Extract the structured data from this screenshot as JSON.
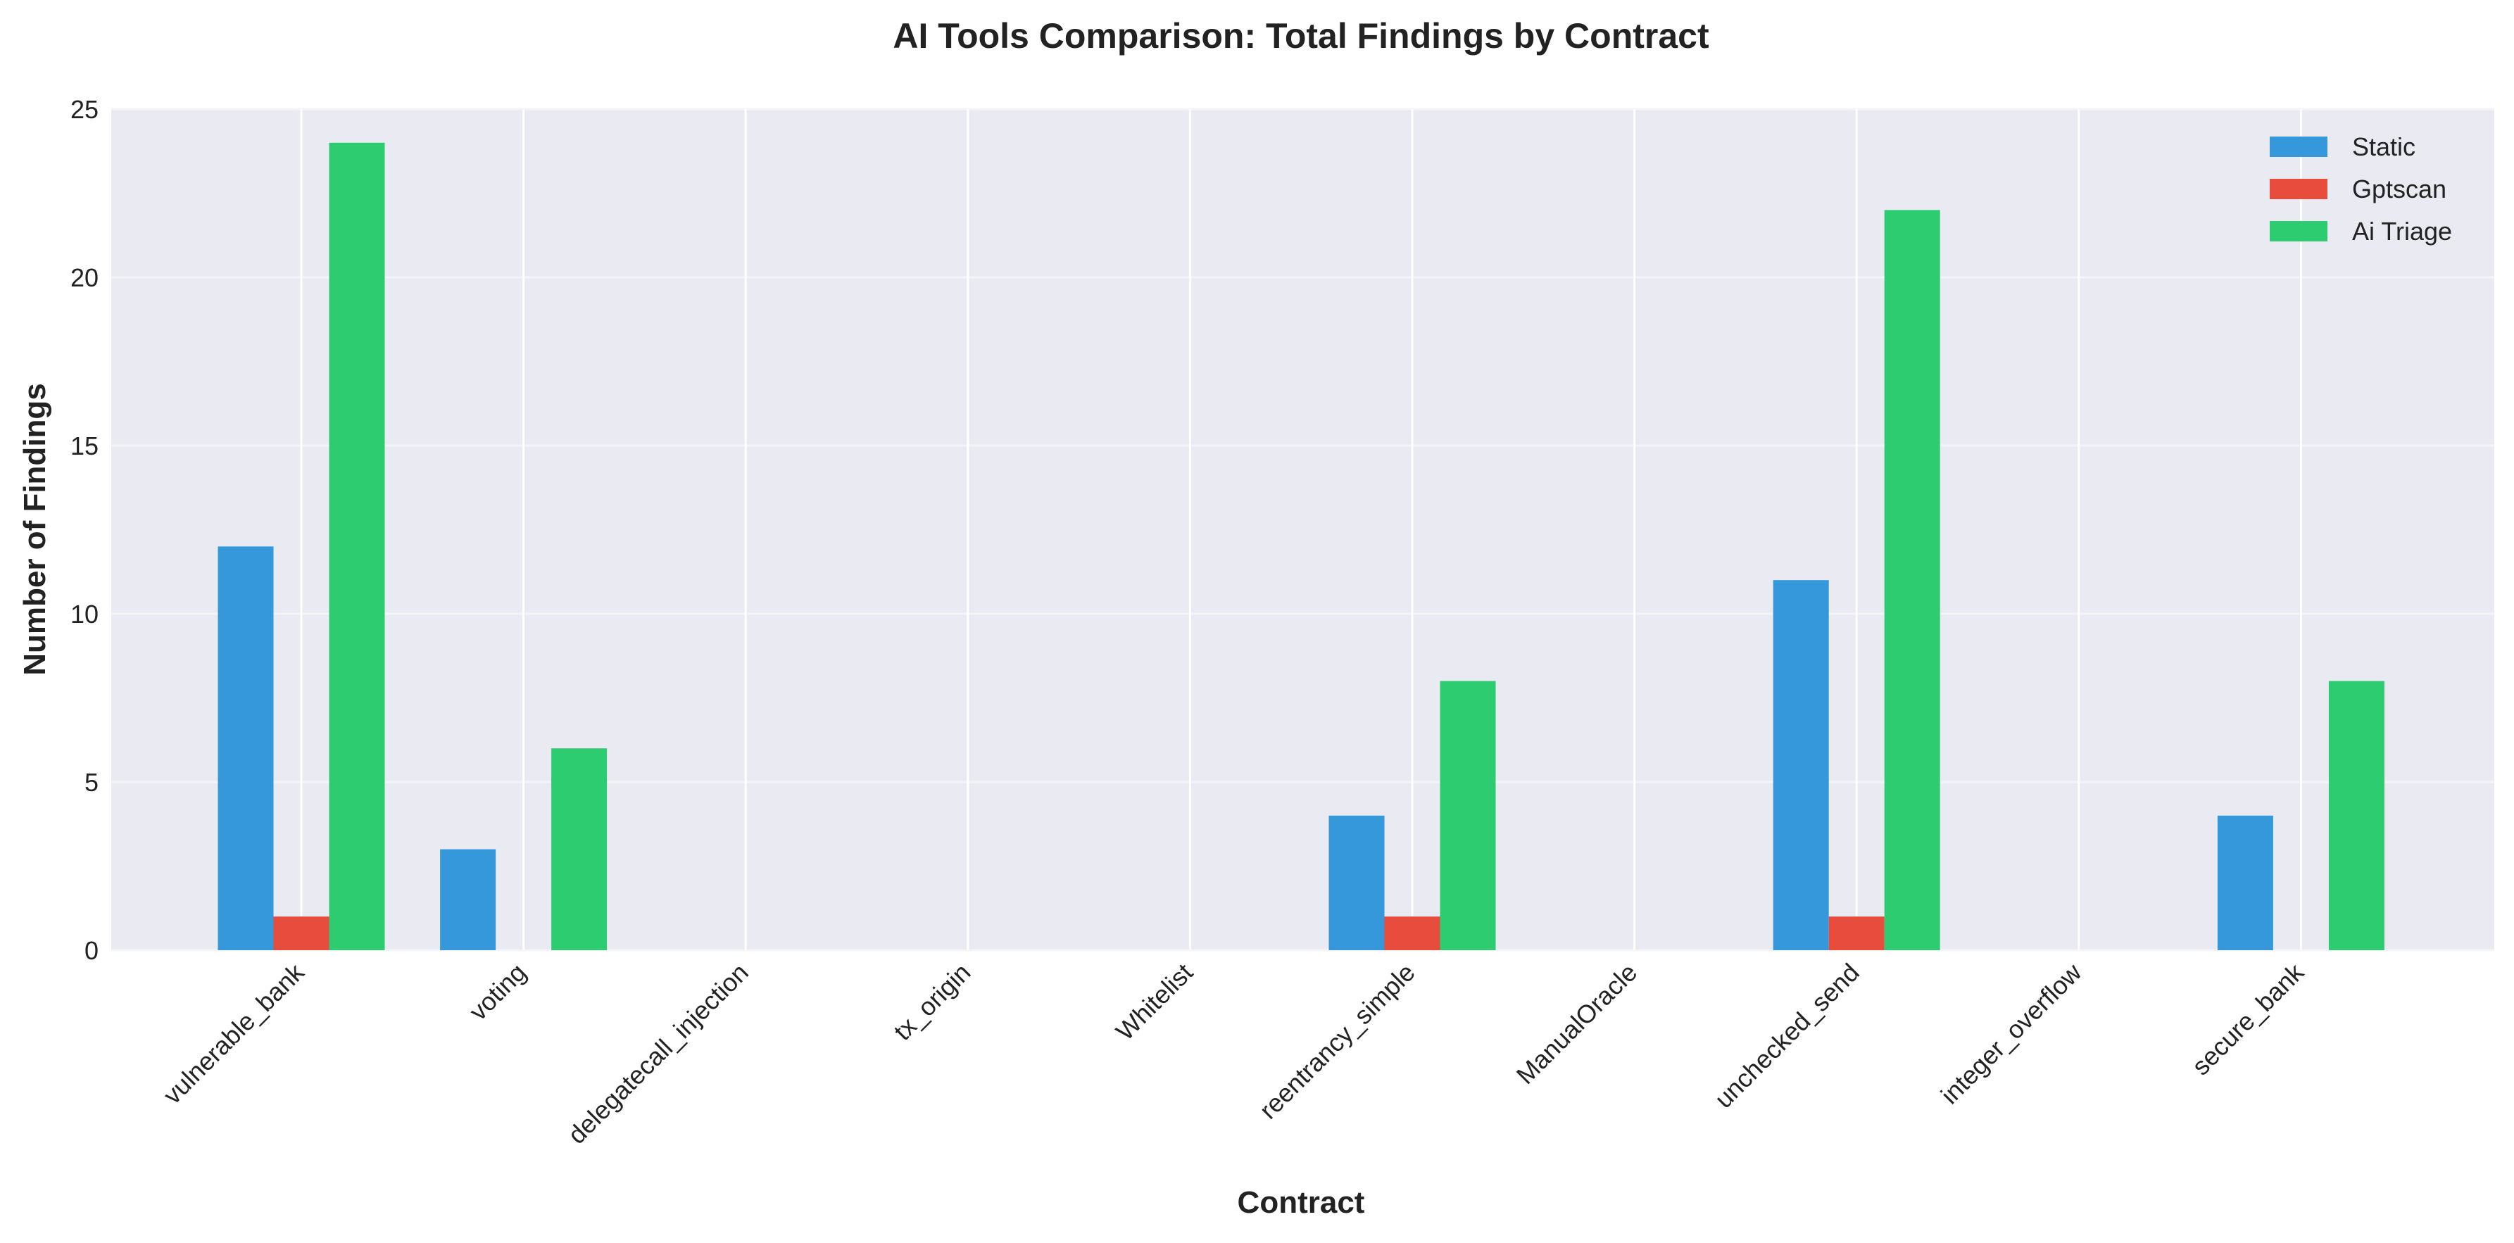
{
  "chart_data": {
    "type": "bar",
    "title": "AI Tools Comparison: Total Findings by Contract",
    "xlabel": "Contract",
    "ylabel": "Number of Findings",
    "categories": [
      "vulnerable_bank",
      "voting",
      "delegatecall_injection",
      "tx_origin",
      "Whitelist",
      "reentrancy_simple",
      "ManualOracle",
      "unchecked_send",
      "integer_overflow",
      "secure_bank"
    ],
    "series": [
      {
        "name": "Static",
        "color": "#3498db",
        "values": [
          12,
          3,
          0,
          0,
          0,
          4,
          0,
          11,
          0,
          4
        ]
      },
      {
        "name": "Gptscan",
        "color": "#e74c3c",
        "values": [
          1,
          0,
          0,
          0,
          0,
          1,
          0,
          1,
          0,
          0
        ]
      },
      {
        "name": "Ai Triage",
        "color": "#2ecc71",
        "values": [
          24,
          6,
          0,
          0,
          0,
          8,
          0,
          22,
          0,
          8
        ]
      }
    ],
    "ylim": [
      0,
      25
    ],
    "yticks": [
      "0",
      "5",
      "10",
      "15",
      "20",
      "25"
    ],
    "grid": true,
    "legend_position": "top-right"
  }
}
